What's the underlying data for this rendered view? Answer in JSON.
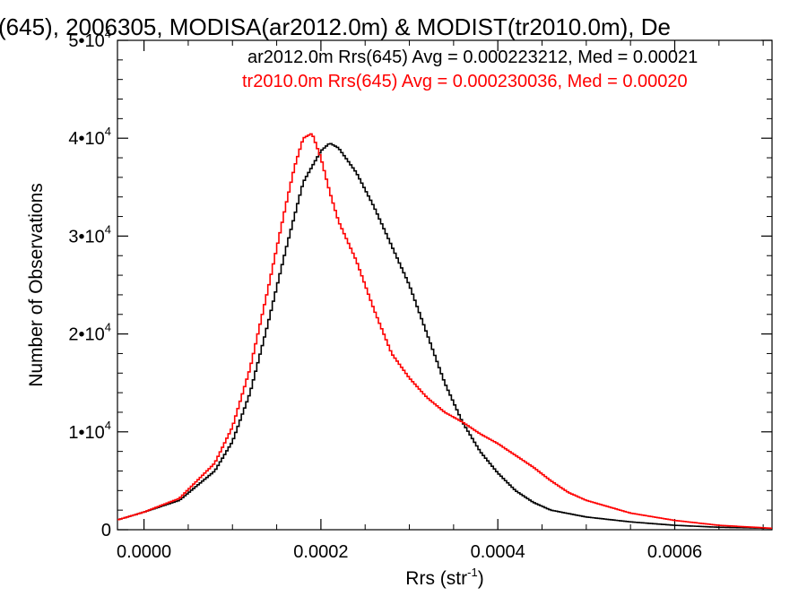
{
  "chart_data": {
    "type": "line",
    "title": "(645), 2006305, MODISA(ar2012.0m) & MODIST(tr2010.0m), De",
    "xlabel": "Rrs (str",
    "xlabel_sup": "-1",
    "xlabel_suffix": ")",
    "ylabel": "Number of Observations",
    "xlim": [
      -3e-05,
      0.00071
    ],
    "ylim": [
      0,
      50000
    ],
    "x_ticks": [
      {
        "value": 0.0,
        "label": "0.0000"
      },
      {
        "value": 0.0002,
        "label": "0.0002"
      },
      {
        "value": 0.0004,
        "label": "0.0004"
      },
      {
        "value": 0.0006,
        "label": "0.0006"
      }
    ],
    "y_ticks": [
      {
        "value": 0,
        "base": "0",
        "exp": ""
      },
      {
        "value": 10000,
        "base": "1•10",
        "exp": "4"
      },
      {
        "value": 20000,
        "base": "2•10",
        "exp": "4"
      },
      {
        "value": 30000,
        "base": "3•10",
        "exp": "4"
      },
      {
        "value": 40000,
        "base": "4•10",
        "exp": "4"
      },
      {
        "value": 50000,
        "base": "5•10",
        "exp": "4"
      }
    ],
    "legend": [
      {
        "text": "ar2012.0m Rrs(645) Avg = 0.000223212, Med = 0.00021",
        "color": "#000000"
      },
      {
        "text": "tr2010.0m Rrs(645) Avg = 0.000230036, Med = 0.00020",
        "color": "#ff0000"
      }
    ],
    "series": [
      {
        "color": "#000000",
        "points": [
          [
            -3e-05,
            1000
          ],
          [
            0.0,
            1800
          ],
          [
            4e-05,
            3000
          ],
          [
            8e-05,
            6000
          ],
          [
            0.0001,
            9000
          ],
          [
            0.00012,
            14000
          ],
          [
            0.00014,
            21000
          ],
          [
            0.00016,
            28500
          ],
          [
            0.00018,
            35500
          ],
          [
            0.0002,
            38700
          ],
          [
            0.00021,
            39500
          ],
          [
            0.00022,
            39000
          ],
          [
            0.00024,
            36500
          ],
          [
            0.00026,
            33000
          ],
          [
            0.00028,
            29000
          ],
          [
            0.0003,
            25000
          ],
          [
            0.00032,
            20000
          ],
          [
            0.00034,
            15000
          ],
          [
            0.00036,
            11000
          ],
          [
            0.00038,
            8000
          ],
          [
            0.0004,
            5800
          ],
          [
            0.00042,
            4000
          ],
          [
            0.00044,
            2800
          ],
          [
            0.00046,
            2000
          ],
          [
            0.0005,
            1300
          ],
          [
            0.00055,
            800
          ],
          [
            0.0006,
            450
          ],
          [
            0.00065,
            250
          ],
          [
            0.00071,
            150
          ]
        ]
      },
      {
        "color": "#ff0000",
        "points": [
          [
            -3e-05,
            1000
          ],
          [
            0.0,
            1800
          ],
          [
            4e-05,
            3200
          ],
          [
            8e-05,
            6800
          ],
          [
            0.0001,
            10500
          ],
          [
            0.00012,
            16500
          ],
          [
            0.00014,
            24500
          ],
          [
            0.00016,
            33000
          ],
          [
            0.00017,
            37000
          ],
          [
            0.00018,
            40000
          ],
          [
            0.00019,
            40500
          ],
          [
            0.0002,
            38000
          ],
          [
            0.00021,
            34500
          ],
          [
            0.00022,
            31500
          ],
          [
            0.00024,
            27500
          ],
          [
            0.00026,
            22500
          ],
          [
            0.00028,
            18000
          ],
          [
            0.0003,
            15500
          ],
          [
            0.00032,
            13500
          ],
          [
            0.00034,
            12000
          ],
          [
            0.00036,
            11000
          ],
          [
            0.00038,
            9800
          ],
          [
            0.0004,
            8800
          ],
          [
            0.00042,
            7600
          ],
          [
            0.00044,
            6400
          ],
          [
            0.00046,
            5000
          ],
          [
            0.00048,
            3800
          ],
          [
            0.0005,
            3000
          ],
          [
            0.00055,
            1700
          ],
          [
            0.0006,
            950
          ],
          [
            0.00065,
            450
          ],
          [
            0.00071,
            150
          ]
        ]
      }
    ]
  }
}
